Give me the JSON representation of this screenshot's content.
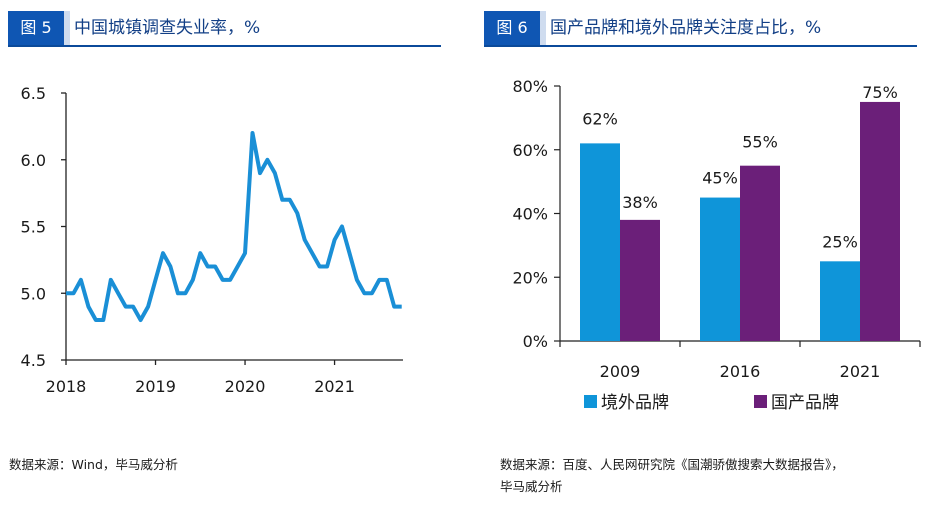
{
  "figures": [
    {
      "badge": "图 5",
      "title": "中国城镇调查失业率，%",
      "source": "数据来源：Wind，毕马威分析"
    },
    {
      "badge": "图 6",
      "title": "国产品牌和境外品牌关注度占比，%",
      "source_line1": "数据来源：百度、人民网研究院《国潮骄傲搜索大数据报告》，",
      "source_line2": "毕马威分析"
    }
  ],
  "chart_data": [
    {
      "type": "line",
      "title": "中国城镇调查失业率，%",
      "xlabel": "",
      "ylabel": "",
      "ylim": [
        4.5,
        6.5
      ],
      "yticks": [
        4.5,
        5.0,
        5.5,
        6.0,
        6.5
      ],
      "ytick_labels": [
        "4.5",
        "5.0",
        "5.5",
        "6.0",
        "6.5"
      ],
      "xtick_labels": [
        "2018",
        "2019",
        "2020",
        "2021"
      ],
      "x_start": "2018-01",
      "frequency": "monthly",
      "grid": false,
      "color": "#1a8fd6",
      "series": [
        {
          "name": "城镇调查失业率",
          "values": [
            5.0,
            5.0,
            5.1,
            4.9,
            4.8,
            4.8,
            5.1,
            5.0,
            4.9,
            4.9,
            4.8,
            4.9,
            5.1,
            5.3,
            5.2,
            5.0,
            5.0,
            5.1,
            5.3,
            5.2,
            5.2,
            5.1,
            5.1,
            5.2,
            5.3,
            6.2,
            5.9,
            6.0,
            5.9,
            5.7,
            5.7,
            5.6,
            5.4,
            5.3,
            5.2,
            5.2,
            5.4,
            5.5,
            5.3,
            5.1,
            5.0,
            5.0,
            5.1,
            5.1,
            4.9,
            4.9
          ]
        }
      ]
    },
    {
      "type": "bar",
      "title": "国产品牌和境外品牌关注度占比，%",
      "categories": [
        "2009",
        "2016",
        "2021"
      ],
      "ylim": [
        0,
        80
      ],
      "yticks": [
        0,
        20,
        40,
        60,
        80
      ],
      "ytick_labels": [
        "0%",
        "20%",
        "40%",
        "60%",
        "80%"
      ],
      "grid": false,
      "legend_position": "bottom",
      "series": [
        {
          "name": "境外品牌",
          "color": "#0f95d9",
          "values": [
            62,
            45,
            25
          ],
          "labels": [
            "62%",
            "45%",
            "25%"
          ]
        },
        {
          "name": "国产品牌",
          "color": "#6b1f79",
          "values": [
            38,
            55,
            75
          ],
          "labels": [
            "38%",
            "55%",
            "75%"
          ]
        }
      ]
    }
  ]
}
